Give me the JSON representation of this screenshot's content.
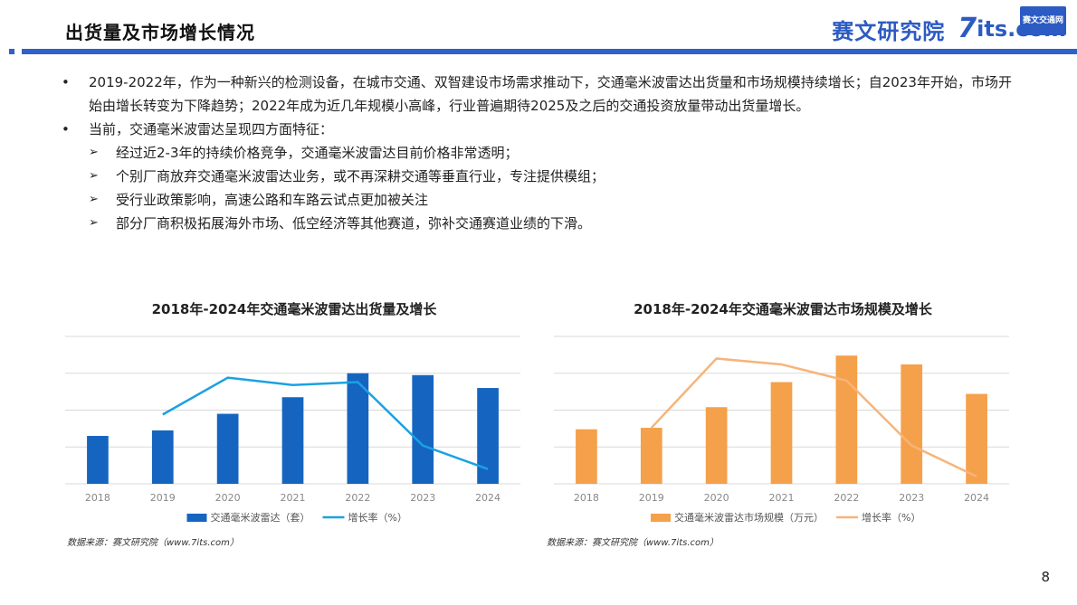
{
  "header": {
    "title": "出货量及市场增长情况",
    "logo_cn": "赛文研究院",
    "logo_num": "7",
    "logo_its": "its.com",
    "logo_badge": "赛文交通网"
  },
  "bullets": {
    "b1": "2019-2022年，作为一种新兴的检测设备，在城市交通、双智建设市场需求推动下，交通毫米波雷达出货量和市场规模持续增长；自2023年开始，市场开始由增长转变为下降趋势；2022年成为近几年规模小高峰，行业普遍期待2025及之后的交通投资放量带动出货量增长。",
    "b2": "当前，交通毫米波雷达呈现四方面特征：",
    "sub1": "经过近2-3年的持续价格竞争，交通毫米波雷达目前价格非常透明；",
    "sub2": "个别厂商放弃交通毫米波雷达业务，或不再深耕交通等垂直行业，专注提供模组；",
    "sub3": "受行业政策影响，高速公路和车路云试点更加被关注",
    "sub4": "部分厂商积极拓展海外市场、低空经济等其他赛道，弥补交通赛道业绩的下滑。",
    "arrow": "➢"
  },
  "chart_data": [
    {
      "type": "bar",
      "title": "2018年-2024年交通毫米波雷达出货量及增长",
      "categories": [
        "2018",
        "2019",
        "2020",
        "2021",
        "2022",
        "2023",
        "2024"
      ],
      "series": [
        {
          "name": "交通毫米波雷达（套）",
          "type": "bar",
          "values": [
            26,
            29,
            38,
            47,
            60,
            59,
            52
          ],
          "color": "#1565c0"
        },
        {
          "name": "增长率（%）",
          "type": "line",
          "values": [
            null,
            47,
            72,
            67,
            69,
            26,
            10
          ],
          "color": "#1ba1e2"
        }
      ],
      "ylim": [
        0,
        80
      ],
      "grid": true,
      "legend": "bottom",
      "source": "数据来源：赛文研究院（www.7its.com）"
    },
    {
      "type": "bar",
      "title": "2018年-2024年交通毫米波雷达市场规模及增长",
      "categories": [
        "2018",
        "2019",
        "2020",
        "2021",
        "2022",
        "2023",
        "2024"
      ],
      "series": [
        {
          "name": "交通毫米波雷达市场规模（万元）",
          "type": "bar",
          "values": [
            37,
            38,
            52,
            69,
            87,
            81,
            61
          ],
          "color": "#f5a04a"
        },
        {
          "name": "增长率（%）",
          "type": "line",
          "values": [
            null,
            38,
            85,
            81,
            70,
            26,
            5
          ],
          "color": "#f7b47a"
        }
      ],
      "ylim": [
        0,
        100
      ],
      "grid": true,
      "legend": "bottom",
      "source": "数据来源：赛文研究院（www.7its.com）"
    }
  ],
  "page_number": "8"
}
